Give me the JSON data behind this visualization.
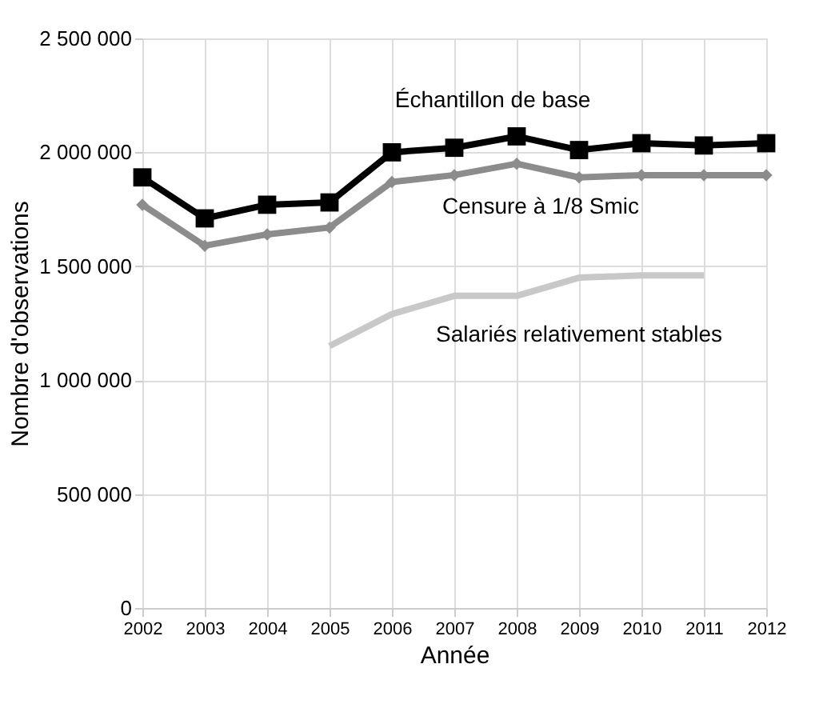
{
  "chart_data": {
    "type": "line",
    "xlabel": "Année",
    "ylabel": "Nombre d'observations",
    "x": [
      2002,
      2003,
      2004,
      2005,
      2006,
      2007,
      2008,
      2009,
      2010,
      2011,
      2012
    ],
    "xlim": [
      2002,
      2012
    ],
    "xticks": [
      2002,
      2003,
      2004,
      2005,
      2006,
      2007,
      2008,
      2009,
      2010,
      2011,
      2012
    ],
    "ylim": [
      0,
      2500000
    ],
    "yticks": [
      {
        "value": 0,
        "label": "0"
      },
      {
        "value": 500000,
        "label": "500 000"
      },
      {
        "value": 1000000,
        "label": "1 000 000"
      },
      {
        "value": 1500000,
        "label": "1 500 000"
      },
      {
        "value": 2000000,
        "label": "2 000 000"
      },
      {
        "value": 2500000,
        "label": "2 500 000"
      }
    ],
    "grid": true,
    "line_style": "solid",
    "series": [
      {
        "name": "Échantillon de base",
        "color": "#000000",
        "marker": "square",
        "values": [
          1890000,
          1710000,
          1770000,
          1780000,
          2000000,
          2020000,
          2070000,
          2010000,
          2040000,
          2030000,
          2040000
        ]
      },
      {
        "name": "Censure à 1/8 Smic",
        "color": "#8c8c8c",
        "marker": "diamond",
        "values": [
          1770000,
          1590000,
          1640000,
          1670000,
          1870000,
          1900000,
          1950000,
          1890000,
          1900000,
          1900000,
          1900000
        ]
      },
      {
        "name": "Salariés relativement stables",
        "color": "#c8c8c8",
        "marker": "none",
        "values": [
          null,
          null,
          null,
          1150000,
          1290000,
          1370000,
          1370000,
          1450000,
          1460000,
          1460000,
          null
        ]
      }
    ]
  }
}
